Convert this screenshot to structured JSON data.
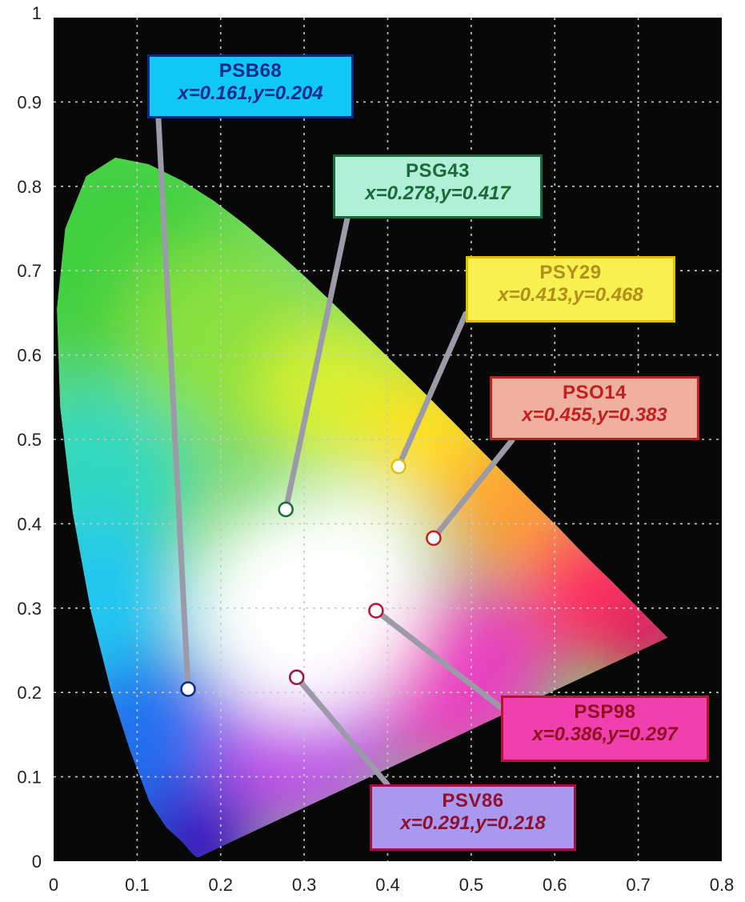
{
  "chart_data": {
    "type": "scatter",
    "title": "",
    "xlabel": "",
    "ylabel": "",
    "xlim": [
      0,
      0.8
    ],
    "ylim": [
      0,
      1
    ],
    "x_ticks": [
      "0",
      "0.1",
      "0.2",
      "0.3",
      "0.4",
      "0.5",
      "0.6",
      "0.7",
      "0.8"
    ],
    "y_ticks": [
      "0",
      "0.1",
      "0.2",
      "0.3",
      "0.4",
      "0.5",
      "0.6",
      "0.7",
      "0.8",
      "0.9",
      "1"
    ],
    "grid": true,
    "background": "#080808",
    "points": [
      {
        "name": "PSB68",
        "coords": "x=0.161,y=0.204",
        "x": 0.161,
        "y": 0.204,
        "box_color": "#10c8f5",
        "border_color": "#0a2a8a",
        "text_color": "#0a2a8a"
      },
      {
        "name": "PSG43",
        "coords": "x=0.278,y=0.417",
        "x": 0.278,
        "y": 0.417,
        "box_color": "#b0f0d8",
        "border_color": "#1a6a3a",
        "text_color": "#1a6a3a"
      },
      {
        "name": "PSY29",
        "coords": "x=0.413,y=0.468",
        "x": 0.413,
        "y": 0.468,
        "box_color": "#f8f050",
        "border_color": "#e0c000",
        "text_color": "#b09018"
      },
      {
        "name": "PSO14",
        "coords": "x=0.455,y=0.383",
        "x": 0.455,
        "y": 0.383,
        "box_color": "#f0b0a0",
        "border_color": "#c02020",
        "text_color": "#c02020"
      },
      {
        "name": "PSP98",
        "coords": "x=0.386,y=0.297",
        "x": 0.386,
        "y": 0.297,
        "box_color": "#f040b0",
        "border_color": "#c01030",
        "text_color": "#901020"
      },
      {
        "name": "PSV86",
        "coords": "x=0.291,y=0.218",
        "x": 0.291,
        "y": 0.218,
        "box_color": "#a898f0",
        "border_color": "#a01040",
        "text_color": "#901030"
      }
    ]
  }
}
